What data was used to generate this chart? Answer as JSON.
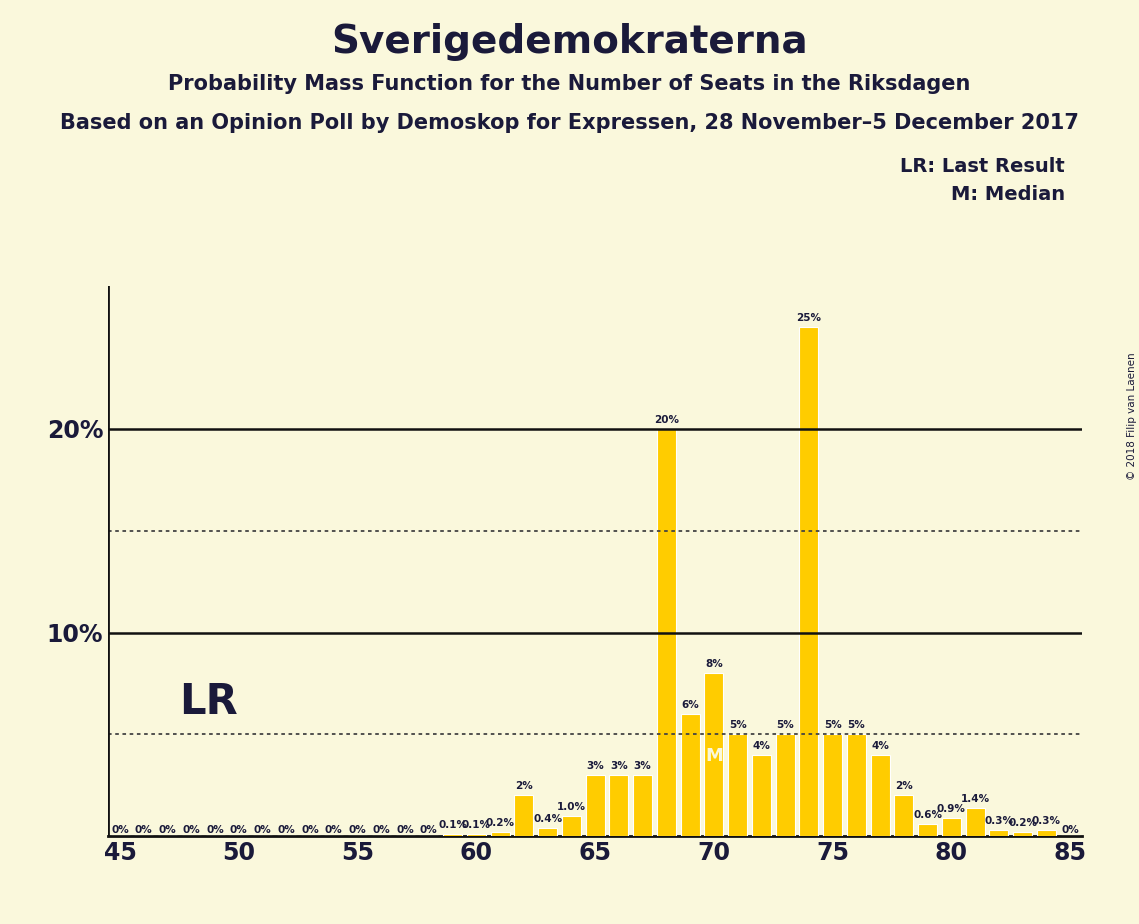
{
  "title": "Sverigedemokraterna",
  "subtitle1": "Probability Mass Function for the Number of Seats in the Riksdagen",
  "subtitle2": "Based on an Opinion Poll by Demoskop for Expressen, 28 November–5 December 2017",
  "copyright": "© 2018 Filip van Laenen",
  "legend_lr": "LR: Last Result",
  "legend_m": "M: Median",
  "lr_label": "LR",
  "m_label": "M",
  "lr_seat": 49,
  "median_seat": 70,
  "background_color": "#FAF8DC",
  "bar_color": "#FFCC00",
  "bar_edge_color": "#FFCC00",
  "dotted_line_color": "#444444",
  "solid_line_color": "#111111",
  "text_color": "#1A1A3A",
  "x_min": 45,
  "x_max": 85,
  "y_min": 0,
  "y_max": 0.27,
  "yticks": [
    0.0,
    0.1,
    0.2
  ],
  "ytick_labels": [
    "",
    "10%",
    "20%"
  ],
  "dotted_lines": [
    0.05,
    0.15
  ],
  "solid_lines": [
    0.1,
    0.2
  ],
  "seats": [
    45,
    46,
    47,
    48,
    49,
    50,
    51,
    52,
    53,
    54,
    55,
    56,
    57,
    58,
    59,
    60,
    61,
    62,
    63,
    64,
    65,
    66,
    67,
    68,
    69,
    70,
    71,
    72,
    73,
    74,
    75,
    76,
    77,
    78,
    79,
    80,
    81,
    82,
    83,
    84,
    85
  ],
  "probs": [
    0.0,
    0.0,
    0.0,
    0.0,
    0.0,
    0.0,
    0.0,
    0.0,
    0.0,
    0.0,
    0.0,
    0.0,
    0.0,
    0.0,
    0.001,
    0.001,
    0.002,
    0.02,
    0.004,
    0.01,
    0.03,
    0.03,
    0.03,
    0.2,
    0.06,
    0.08,
    0.05,
    0.04,
    0.05,
    0.25,
    0.05,
    0.05,
    0.04,
    0.02,
    0.006,
    0.009,
    0.014,
    0.003,
    0.002,
    0.003,
    0.0
  ],
  "labels": [
    "0%",
    "0%",
    "0%",
    "0%",
    "0%",
    "0%",
    "0%",
    "0%",
    "0%",
    "0%",
    "0%",
    "0%",
    "0%",
    "0%",
    "0.1%",
    "0.1%",
    "0.2%",
    "2%",
    "0.4%",
    "1.0%",
    "3%",
    "3%",
    "3%",
    "20%",
    "6%",
    "8%",
    "5%",
    "4%",
    "5%",
    "25%",
    "5%",
    "5%",
    "4%",
    "2%",
    "0.6%",
    "0.9%",
    "1.4%",
    "0.3%",
    "0.2%",
    "0.3%",
    "0%"
  ]
}
